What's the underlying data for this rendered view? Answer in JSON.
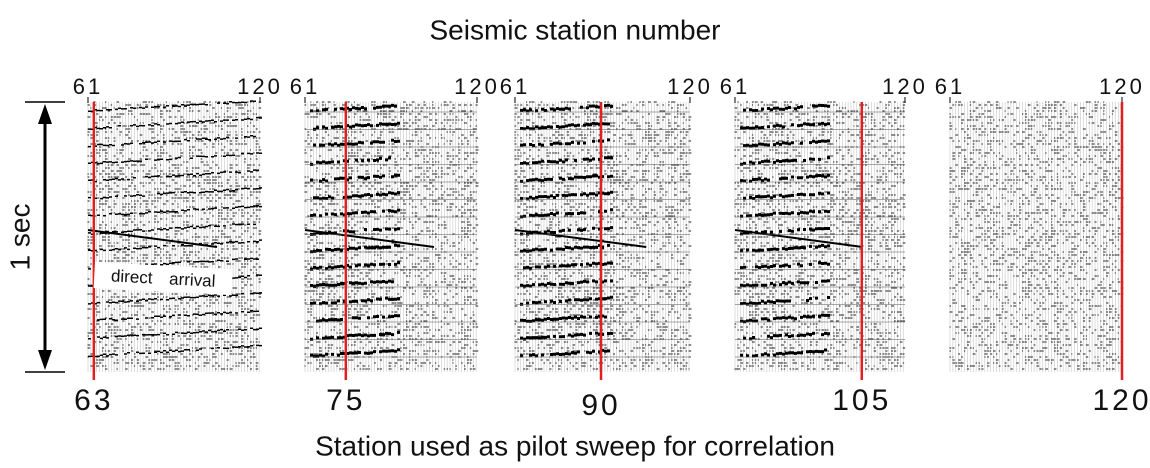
{
  "title": "Seismic station number",
  "x_axis_label": "Station used as pilot sweep for correlation",
  "time_label": "1 sec",
  "annotation": "direct arrival",
  "panels": [
    {
      "station_min": 61,
      "station_max": 120,
      "pilot_station": 63
    },
    {
      "station_min": 61,
      "station_max": 120,
      "pilot_station": 75
    },
    {
      "station_min": 61,
      "station_max": 120,
      "pilot_station": 90
    },
    {
      "station_min": 61,
      "station_max": 120,
      "pilot_station": 105
    },
    {
      "station_min": 61,
      "station_max": 120,
      "pilot_station": 120
    }
  ]
}
